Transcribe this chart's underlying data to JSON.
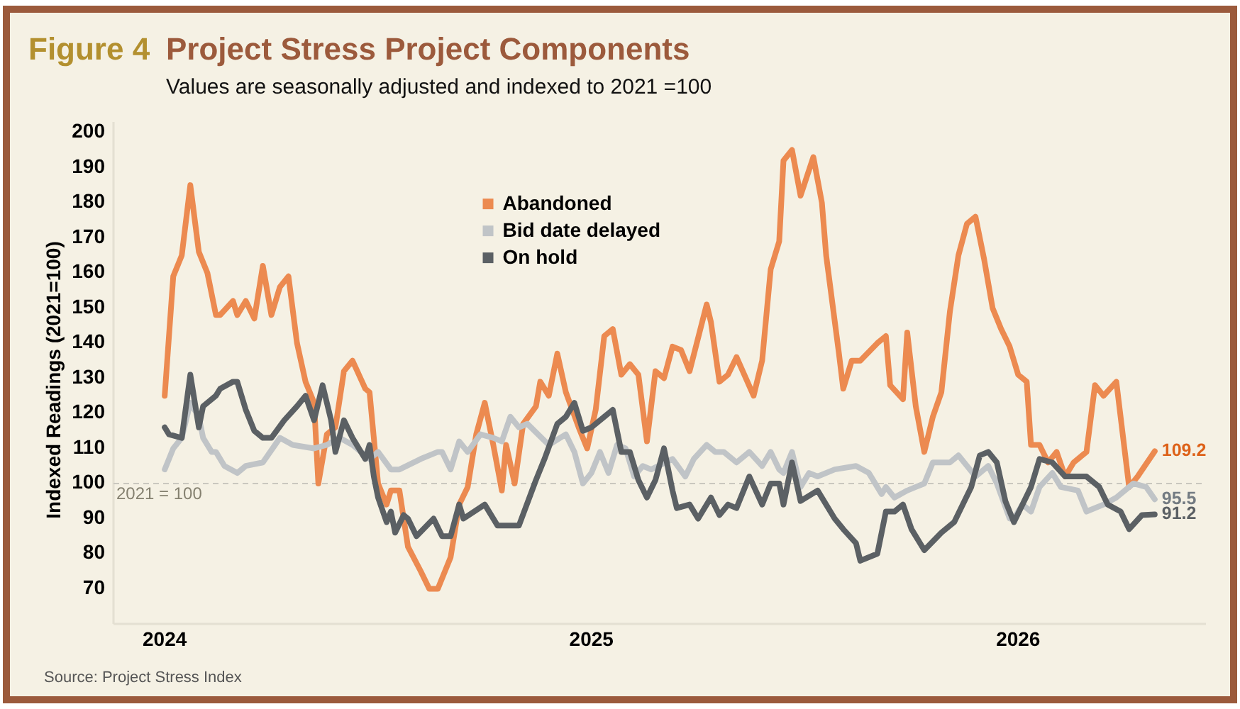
{
  "chart_data": {
    "type": "line",
    "title": "Project Stress Project Components",
    "subtitle": "Values are seasonally adjusted and indexed to 2021 =100",
    "ylabel": "Indexed Readings (2021=100)",
    "annotations": [
      "Figure 4",
      "Source: Project Stress Index"
    ],
    "xlim": [
      2023.88,
      2026.44
    ],
    "xticks": [
      2024,
      2025,
      2026
    ],
    "ylim": [
      60,
      203
    ],
    "yticks": [
      70,
      80,
      90,
      100,
      110,
      120,
      130,
      140,
      150,
      160,
      170,
      180,
      190,
      200
    ],
    "legend": "top",
    "ref_lines": [
      {
        "axis": "y",
        "value": 100,
        "label": "2021 = 100",
        "color": "#c9c7bf",
        "line_style": "dashed"
      }
    ],
    "series": [
      {
        "name": "Abandoned",
        "color": "#ec8a50",
        "x": [
          2024.0,
          2024.02,
          2024.04,
          2024.06,
          2024.08,
          2024.1,
          2024.12,
          2024.13,
          2024.16,
          2024.17,
          2024.19,
          2024.21,
          2024.23,
          2024.25,
          2024.27,
          2024.29,
          2024.31,
          2024.33,
          2024.35,
          2024.36,
          2024.38,
          2024.4,
          2024.42,
          2024.44,
          2024.47,
          2024.48,
          2024.5,
          2024.52,
          2024.53,
          2024.55,
          2024.57,
          2024.6,
          2024.62,
          2024.64,
          2024.67,
          2024.69,
          2024.71,
          2024.73,
          2024.75,
          2024.77,
          2024.79,
          2024.8,
          2024.82,
          2024.84,
          2024.87,
          2024.88,
          2024.9,
          2024.92,
          2024.94,
          2024.97,
          2024.99,
          2025.01,
          2025.03,
          2025.05,
          2025.07,
          2025.09,
          2025.11,
          2025.13,
          2025.15,
          2025.17,
          2025.19,
          2025.21,
          2025.23,
          2025.27,
          2025.28,
          2025.3,
          2025.32,
          2025.34,
          2025.38,
          2025.4,
          2025.42,
          2025.44,
          2025.45,
          2025.47,
          2025.49,
          2025.52,
          2025.54,
          2025.55,
          2025.58,
          2025.59,
          2025.61,
          2025.63,
          2025.67,
          2025.69,
          2025.7,
          2025.73,
          2025.74,
          2025.76,
          2025.78,
          2025.8,
          2025.82,
          2025.84,
          2025.86,
          2025.88,
          2025.9,
          2025.92,
          2025.94,
          2025.96,
          2025.98,
          2026.0,
          2026.02,
          2026.03,
          2026.05,
          2026.07,
          2026.09,
          2026.11,
          2026.13,
          2026.16,
          2026.18,
          2026.2,
          2026.23,
          2026.26,
          2026.28,
          2026.32
        ],
        "values": [
          125,
          159,
          165,
          185,
          166,
          160,
          148,
          148,
          152,
          148,
          152,
          147,
          162,
          148,
          156,
          159,
          140,
          129,
          123,
          100,
          114,
          116,
          132,
          135,
          127,
          126,
          100,
          94,
          98,
          98,
          82,
          75,
          70,
          70,
          79,
          94,
          99,
          114,
          123,
          111,
          98,
          111,
          100,
          117,
          122,
          129,
          125,
          137,
          126,
          116,
          110,
          121,
          142,
          144,
          131,
          134,
          131,
          112,
          132,
          130,
          139,
          138,
          132,
          151,
          146,
          129,
          131,
          136,
          125,
          135,
          161,
          169,
          192,
          195,
          182,
          193,
          180,
          165,
          137,
          127,
          135,
          135,
          140,
          142,
          128,
          124,
          143,
          122,
          109,
          119,
          126,
          149,
          165,
          174,
          176,
          164,
          150,
          144,
          139,
          131,
          129,
          111,
          111,
          106,
          109,
          102,
          106,
          109,
          128,
          125,
          129,
          99,
          102,
          109.2
        ],
        "value_labels": [
          null,
          null,
          null,
          null,
          null,
          null,
          null,
          null,
          null,
          null,
          null,
          null,
          null,
          null,
          null,
          null,
          null,
          null,
          null,
          null,
          null,
          null,
          null,
          null,
          null,
          null,
          null,
          null,
          null,
          null,
          null,
          null,
          null,
          null,
          null,
          null,
          null,
          null,
          null,
          null,
          null,
          null,
          null,
          null,
          null,
          null,
          null,
          null,
          null,
          null,
          null,
          null,
          null,
          null,
          null,
          null,
          null,
          null,
          null,
          null,
          null,
          null,
          null,
          null,
          null,
          null,
          null,
          null,
          null,
          null,
          null,
          null,
          null,
          null,
          null,
          null,
          null,
          null,
          null,
          null,
          null,
          null,
          null,
          null,
          null,
          null,
          null,
          null,
          null,
          null,
          null,
          null,
          null,
          null,
          null,
          null,
          null,
          null,
          null,
          null,
          null,
          null,
          null,
          null,
          null,
          null,
          null,
          null,
          null,
          null,
          null,
          null,
          null,
          "109.2"
        ]
      },
      {
        "name": "Bid date delayed",
        "color": "#c0c4c7",
        "x": [
          2024.0,
          2024.02,
          2024.04,
          2024.06,
          2024.08,
          2024.09,
          2024.11,
          2024.12,
          2024.14,
          2024.17,
          2024.19,
          2024.23,
          2024.27,
          2024.3,
          2024.35,
          2024.38,
          2024.41,
          2024.44,
          2024.48,
          2024.5,
          2024.53,
          2024.55,
          2024.6,
          2024.64,
          2024.65,
          2024.67,
          2024.69,
          2024.71,
          2024.74,
          2024.77,
          2024.79,
          2024.81,
          2024.83,
          2024.85,
          2024.9,
          2024.94,
          2024.96,
          2024.98,
          2025.0,
          2025.02,
          2025.04,
          2025.06,
          2025.08,
          2025.1,
          2025.12,
          2025.14,
          2025.19,
          2025.22,
          2025.24,
          2025.27,
          2025.29,
          2025.31,
          2025.34,
          2025.37,
          2025.4,
          2025.42,
          2025.44,
          2025.45,
          2025.47,
          2025.49,
          2025.51,
          2025.53,
          2025.57,
          2025.62,
          2025.65,
          2025.68,
          2025.69,
          2025.71,
          2025.74,
          2025.76,
          2025.78,
          2025.8,
          2025.84,
          2025.86,
          2025.9,
          2025.93,
          2025.95,
          2025.98,
          2025.99,
          2026.01,
          2026.03,
          2026.05,
          2026.08,
          2026.1,
          2026.14,
          2026.16,
          2026.2,
          2026.23,
          2026.27,
          2026.3,
          2026.32
        ],
        "values": [
          104,
          110,
          113,
          123,
          119,
          113,
          109,
          109,
          105,
          103,
          105,
          106,
          113,
          111,
          110,
          111,
          113,
          111,
          107,
          109,
          104,
          104,
          107,
          109,
          109,
          104,
          112,
          109,
          114,
          113,
          112,
          119,
          116,
          117,
          111,
          114,
          109,
          100,
          103,
          109,
          103,
          111,
          110,
          102,
          105,
          104,
          107,
          102,
          107,
          111,
          109,
          109,
          106,
          109,
          105,
          109,
          104,
          103,
          109,
          99,
          103,
          102,
          104,
          105,
          103,
          97,
          99,
          96,
          98,
          99,
          100,
          106,
          106,
          108,
          102,
          105,
          100,
          90,
          90,
          94,
          92,
          99,
          103,
          99,
          98,
          92,
          94,
          96,
          100,
          99,
          95.5
        ],
        "value_labels": [
          null,
          null,
          null,
          null,
          null,
          null,
          null,
          null,
          null,
          null,
          null,
          null,
          null,
          null,
          null,
          null,
          null,
          null,
          null,
          null,
          null,
          null,
          null,
          null,
          null,
          null,
          null,
          null,
          null,
          null,
          null,
          null,
          null,
          null,
          null,
          null,
          null,
          null,
          null,
          null,
          null,
          null,
          null,
          null,
          null,
          null,
          null,
          null,
          null,
          null,
          null,
          null,
          null,
          null,
          null,
          null,
          null,
          null,
          null,
          null,
          null,
          null,
          null,
          null,
          null,
          null,
          null,
          null,
          null,
          null,
          null,
          null,
          null,
          null,
          null,
          null,
          null,
          null,
          null,
          null,
          null,
          null,
          null,
          null,
          null,
          null,
          null,
          null,
          null,
          null,
          "95.5"
        ]
      },
      {
        "name": "On hold",
        "color": "#5b6064",
        "x": [
          2024.0,
          2024.01,
          2024.04,
          2024.06,
          2024.08,
          2024.09,
          2024.12,
          2024.13,
          2024.16,
          2024.17,
          2024.19,
          2024.21,
          2024.23,
          2024.25,
          2024.28,
          2024.31,
          2024.33,
          2024.35,
          2024.37,
          2024.39,
          2024.4,
          2024.42,
          2024.44,
          2024.47,
          2024.48,
          2024.49,
          2024.5,
          2024.52,
          2024.53,
          2024.54,
          2024.56,
          2024.57,
          2024.59,
          2024.63,
          2024.65,
          2024.67,
          2024.69,
          2024.7,
          2024.75,
          2024.78,
          2024.83,
          2024.87,
          2024.89,
          2024.92,
          2024.94,
          2024.96,
          2024.98,
          2025.0,
          2025.03,
          2025.05,
          2025.07,
          2025.09,
          2025.11,
          2025.13,
          2025.15,
          2025.17,
          2025.19,
          2025.2,
          2025.23,
          2025.25,
          2025.28,
          2025.3,
          2025.32,
          2025.34,
          2025.37,
          2025.4,
          2025.42,
          2025.44,
          2025.45,
          2025.47,
          2025.49,
          2025.53,
          2025.57,
          2025.59,
          2025.62,
          2025.63,
          2025.67,
          2025.69,
          2025.71,
          2025.73,
          2025.75,
          2025.78,
          2025.82,
          2025.85,
          2025.89,
          2025.91,
          2025.93,
          2025.95,
          2025.97,
          2025.99,
          2026.03,
          2026.05,
          2026.08,
          2026.11,
          2026.16,
          2026.19,
          2026.21,
          2026.24,
          2026.26,
          2026.29,
          2026.32
        ],
        "values": [
          116,
          114,
          113,
          131,
          116,
          122,
          125,
          127,
          129,
          129,
          121,
          115,
          113,
          113,
          118,
          122,
          125,
          118,
          128,
          118,
          109,
          118,
          113,
          107,
          111,
          102,
          96,
          89,
          92,
          86,
          91,
          90,
          85,
          90,
          85,
          85,
          94,
          90,
          94,
          88,
          88,
          101,
          107,
          117,
          119,
          123,
          115,
          116,
          119,
          121,
          109,
          109,
          101,
          96,
          101,
          110,
          98,
          93,
          94,
          90,
          96,
          91,
          94,
          93,
          102,
          94,
          100,
          100,
          94,
          106,
          95,
          98,
          90,
          87,
          83,
          78,
          80,
          92,
          92,
          94,
          87,
          81,
          86,
          89,
          99,
          108,
          109,
          106,
          95,
          89,
          99,
          107,
          106,
          102,
          102,
          99,
          94,
          92,
          87,
          91,
          91.2
        ],
        "value_labels": [
          null,
          null,
          null,
          null,
          null,
          null,
          null,
          null,
          null,
          null,
          null,
          null,
          null,
          null,
          null,
          null,
          null,
          null,
          null,
          null,
          null,
          null,
          null,
          null,
          null,
          null,
          null,
          null,
          null,
          null,
          null,
          null,
          null,
          null,
          null,
          null,
          null,
          null,
          null,
          null,
          null,
          null,
          null,
          null,
          null,
          null,
          null,
          null,
          null,
          null,
          null,
          null,
          null,
          null,
          null,
          null,
          null,
          null,
          null,
          null,
          null,
          null,
          null,
          null,
          null,
          null,
          null,
          null,
          null,
          null,
          null,
          null,
          null,
          null,
          null,
          null,
          null,
          null,
          null,
          null,
          null,
          null,
          null,
          null,
          null,
          null,
          null,
          null,
          null,
          null,
          null,
          null,
          null,
          null,
          null,
          null,
          null,
          null,
          null,
          null,
          "91.2"
        ]
      }
    ]
  }
}
